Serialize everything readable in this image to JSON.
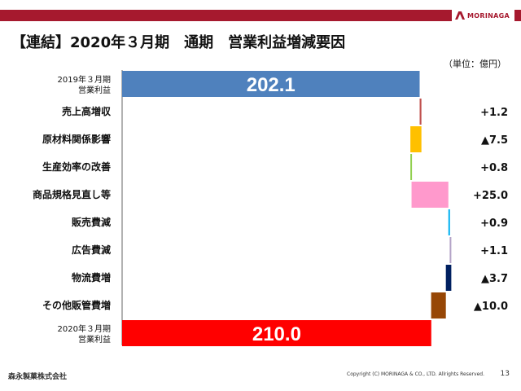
{
  "title": "【連結】2020年３月期　通期　営業利益増減要因",
  "unit_label": "（単位：億円）",
  "logo_text": "MORINAGA",
  "footer": {
    "company": "森永製菓株式会社",
    "copyright": "Copyright (C) MORINAGA & CO., LTD. Allrights Reserved.",
    "page": "13"
  },
  "chart_data": {
    "type": "waterfall",
    "title": "【連結】2020年３月期　通期　営業利益増減要因",
    "unit": "億円",
    "categories": [
      "2019年３月期 営業利益",
      "売上高増収",
      "原材料関係影響",
      "生産効率の改善",
      "商品規格見直し等",
      "販売費減",
      "広告費減",
      "物流費増",
      "その他販管費増",
      "2020年３月期 営業利益"
    ],
    "label_lines": [
      [
        "2019年３月期",
        "営業利益"
      ],
      [
        "売上高増収"
      ],
      [
        "原材料関係影響"
      ],
      [
        "生産効率の改善"
      ],
      [
        "商品規格見直し等"
      ],
      [
        "販売費減"
      ],
      [
        "広告費減"
      ],
      [
        "物流費増"
      ],
      [
        "その他販管費増"
      ],
      [
        "2020年３月期",
        "営業利益"
      ]
    ],
    "kinds": [
      "total",
      "delta",
      "delta",
      "delta",
      "delta",
      "delta",
      "delta",
      "delta",
      "delta",
      "total"
    ],
    "values": [
      202.1,
      1.2,
      -7.5,
      0.8,
      25.0,
      0.9,
      1.1,
      -3.7,
      -10.0,
      210.0
    ],
    "value_labels": [
      "202.1",
      "+1.2",
      "▲7.5",
      "+0.8",
      "+25.0",
      "+0.9",
      "+1.1",
      "▲3.7",
      "▲10.0",
      "210.0"
    ],
    "colors": [
      "#4f81bd",
      "#c0504d",
      "#ffc000",
      "#92d050",
      "#ff99cc",
      "#00b0f0",
      "#b3a2c7",
      "#002060",
      "#974706",
      "#ff0000"
    ]
  }
}
